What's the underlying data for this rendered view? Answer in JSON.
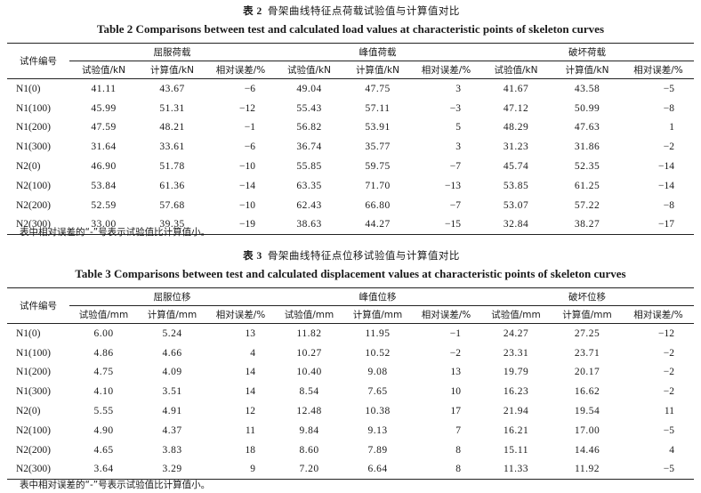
{
  "table2": {
    "caption_cn_label": "表 2",
    "caption_cn_text": "骨架曲线特征点荷载试验值与计算值对比",
    "caption_en": "Table 2    Comparisons between test and calculated load values at characteristic points of skeleton curves",
    "row_header": "试件编号",
    "groups": [
      "屈服荷载",
      "峰值荷载",
      "破坏荷载"
    ],
    "subheaders": [
      "试验值/kN",
      "计算值/kN",
      "相对误差/%",
      "试验值/kN",
      "计算值/kN",
      "相对误差/%",
      "试验值/kN",
      "计算值/kN",
      "相对误差/%"
    ],
    "rows": [
      [
        "N1(0)",
        "41.11",
        "43.67",
        "−6",
        "49.04",
        "47.75",
        "3",
        "41.67",
        "43.58",
        "−5"
      ],
      [
        "N1(100)",
        "45.99",
        "51.31",
        "−12",
        "55.43",
        "57.11",
        "−3",
        "47.12",
        "50.99",
        "−8"
      ],
      [
        "N1(200)",
        "47.59",
        "48.21",
        "−1",
        "56.82",
        "53.91",
        "5",
        "48.29",
        "47.63",
        "1"
      ],
      [
        "N1(300)",
        "31.64",
        "33.61",
        "−6",
        "36.74",
        "35.77",
        "3",
        "31.23",
        "31.86",
        "−2"
      ],
      [
        "N2(0)",
        "46.90",
        "51.78",
        "−10",
        "55.85",
        "59.75",
        "−7",
        "45.74",
        "52.35",
        "−14"
      ],
      [
        "N2(100)",
        "53.84",
        "61.36",
        "−14",
        "63.35",
        "71.70",
        "−13",
        "53.85",
        "61.25",
        "−14"
      ],
      [
        "N2(200)",
        "52.59",
        "57.68",
        "−10",
        "62.43",
        "66.80",
        "−7",
        "53.07",
        "57.22",
        "−8"
      ],
      [
        "N2(300)",
        "33.00",
        "39.35",
        "−19",
        "38.63",
        "44.27",
        "−15",
        "32.84",
        "38.27",
        "−17"
      ]
    ],
    "note": "表中相对误差的“-”号表示试验值比计算值小。"
  },
  "table3": {
    "caption_cn_label": "表 3",
    "caption_cn_text": "骨架曲线特征点位移试验值与计算值对比",
    "caption_en": "Table 3    Comparisons between test and calculated displacement values at characteristic points of skeleton curves",
    "row_header": "试件编号",
    "groups": [
      "屈服位移",
      "峰值位移",
      "破坏位移"
    ],
    "subheaders": [
      "试验值/mm",
      "计算值/mm",
      "相对误差/%",
      "试验值/mm",
      "计算值/mm",
      "相对误差/%",
      "试验值/mm",
      "计算值/mm",
      "相对误差/%"
    ],
    "rows": [
      [
        "N1(0)",
        "6.00",
        "5.24",
        "13",
        "11.82",
        "11.95",
        "−1",
        "24.27",
        "27.25",
        "−12"
      ],
      [
        "N1(100)",
        "4.86",
        "4.66",
        "4",
        "10.27",
        "10.52",
        "−2",
        "23.31",
        "23.71",
        "−2"
      ],
      [
        "N1(200)",
        "4.75",
        "4.09",
        "14",
        "10.40",
        "9.08",
        "13",
        "19.79",
        "20.17",
        "−2"
      ],
      [
        "N1(300)",
        "4.10",
        "3.51",
        "14",
        "8.54",
        "7.65",
        "10",
        "16.23",
        "16.62",
        "−2"
      ],
      [
        "N2(0)",
        "5.55",
        "4.91",
        "12",
        "12.48",
        "10.38",
        "17",
        "21.94",
        "19.54",
        "11"
      ],
      [
        "N2(100)",
        "4.90",
        "4.37",
        "11",
        "9.84",
        "9.13",
        "7",
        "16.21",
        "17.00",
        "−5"
      ],
      [
        "N2(200)",
        "4.65",
        "3.83",
        "18",
        "8.60",
        "7.89",
        "8",
        "15.11",
        "14.46",
        "4"
      ],
      [
        "N2(300)",
        "3.64",
        "3.29",
        "9",
        "7.20",
        "6.64",
        "8",
        "11.33",
        "11.92",
        "−5"
      ]
    ],
    "note": "表中相对误差的“-”号表示试验值比计算值小。"
  }
}
